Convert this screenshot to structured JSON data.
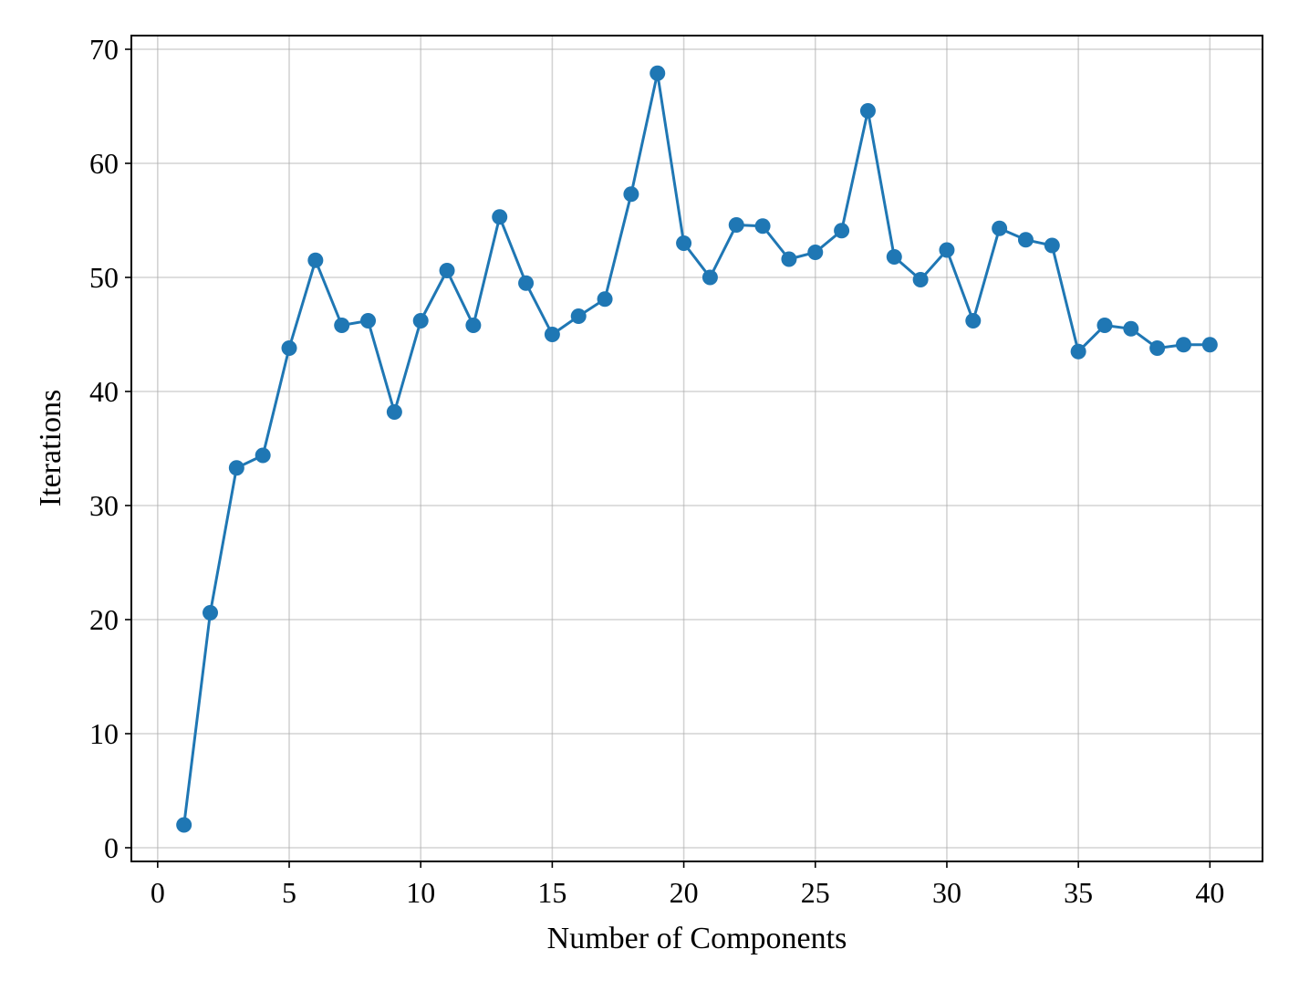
{
  "chart_data": {
    "type": "line",
    "title": "",
    "xlabel": "Number of Components",
    "ylabel": "Iterations",
    "xlim": [
      -1,
      42
    ],
    "ylim": [
      -1.2,
      71.2
    ],
    "xticks": [
      0,
      5,
      10,
      15,
      20,
      25,
      30,
      35,
      40
    ],
    "yticks": [
      0,
      10,
      20,
      30,
      40,
      50,
      60,
      70
    ],
    "grid": true,
    "markers": true,
    "color": "#1f77b4",
    "x": [
      1,
      2,
      3,
      4,
      5,
      6,
      7,
      8,
      9,
      10,
      11,
      12,
      13,
      14,
      15,
      16,
      17,
      18,
      19,
      20,
      21,
      22,
      23,
      24,
      25,
      26,
      27,
      28,
      29,
      30,
      31,
      32,
      33,
      34,
      35,
      36,
      37,
      38,
      39,
      40
    ],
    "series": [
      {
        "values": [
          2.0,
          20.6,
          33.3,
          34.4,
          43.8,
          51.5,
          45.8,
          46.2,
          38.2,
          46.2,
          50.6,
          45.8,
          55.3,
          49.5,
          45.0,
          46.6,
          48.1,
          57.3,
          67.9,
          53.0,
          50.0,
          54.6,
          54.5,
          51.6,
          52.2,
          54.1,
          64.6,
          51.8,
          49.8,
          52.4,
          46.2,
          54.3,
          53.3,
          52.8,
          43.5,
          45.8,
          45.5,
          43.8,
          44.1,
          44.1
        ]
      }
    ]
  }
}
